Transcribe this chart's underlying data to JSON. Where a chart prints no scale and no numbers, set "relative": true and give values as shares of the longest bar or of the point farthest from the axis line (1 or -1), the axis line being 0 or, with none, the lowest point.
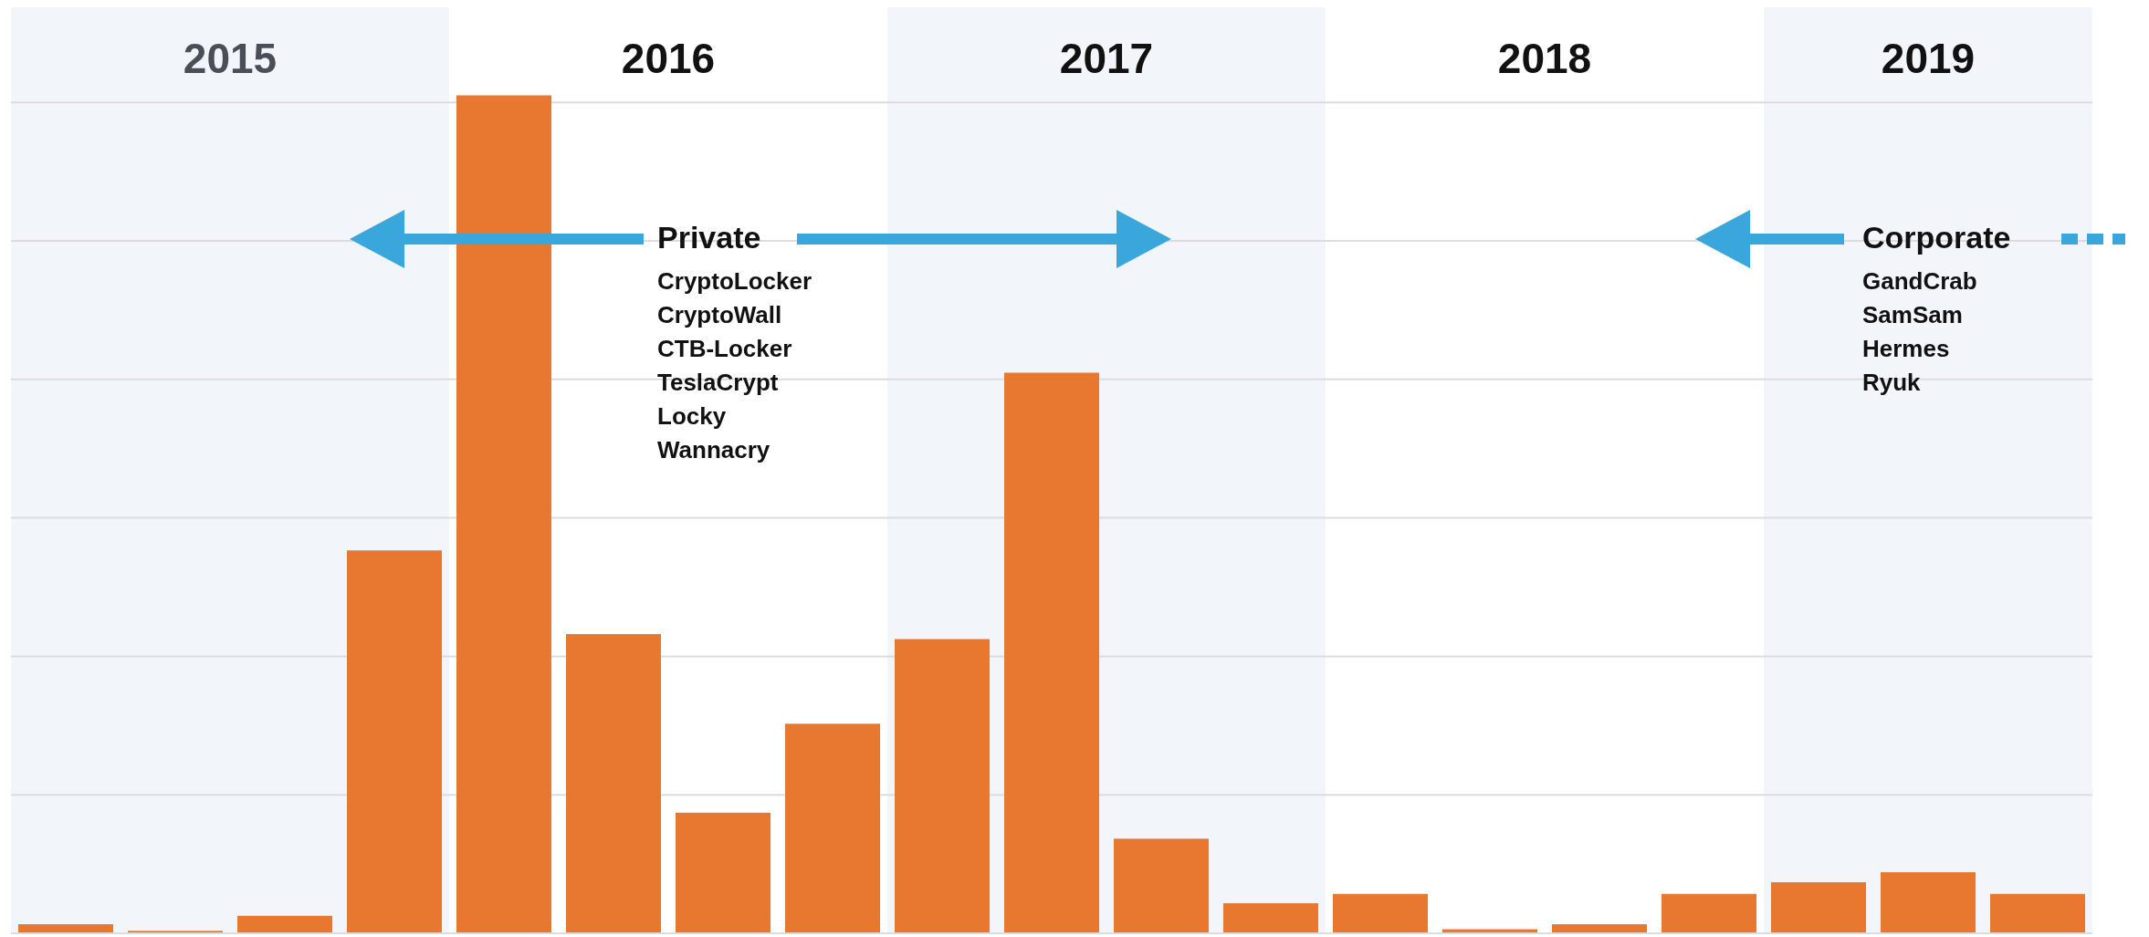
{
  "chart_data": {
    "type": "bar",
    "relative": true,
    "categories": [
      null,
      null,
      null,
      null,
      null,
      null,
      null,
      null,
      null,
      null,
      null,
      null,
      null,
      null,
      null,
      null,
      null,
      null,
      null
    ],
    "values": [
      0.011,
      0.003,
      0.021,
      0.457,
      1,
      0.357,
      0.144,
      0.25,
      0.351,
      0.669,
      0.113,
      0.036,
      0.047,
      0.005,
      0.011,
      0.047,
      0.061,
      0.073,
      0.047
    ],
    "color": "#e8782f",
    "annotations": [
      "2015",
      "2016",
      "2017",
      "2018",
      "2019",
      "Private",
      "CryptoLocker",
      "CryptoWall",
      "CTB-Locker",
      "TeslaCrypt",
      "Locky",
      "Wannacry",
      "Corporate",
      "GandCrab",
      "SamSam",
      "Hermes",
      "Ryuk"
    ],
    "grid": "y"
  }
}
